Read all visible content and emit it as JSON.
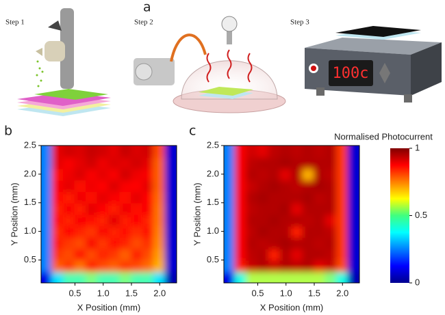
{
  "figure": {
    "panel_a": {
      "label": "a",
      "steps": [
        "Step 1",
        "Step 2",
        "Step 3"
      ],
      "display": "100c"
    }
  },
  "chart_data": [
    {
      "type": "heatmap",
      "panel_label": "b",
      "xlabel": "X Position (mm)",
      "ylabel": "Y Position (mm)",
      "xlim": [
        -0.1,
        2.3
      ],
      "ylim": [
        0.1,
        2.5
      ],
      "xticks": [
        0.5,
        {
          "value": 1,
          "label": "1.0"
        },
        1.5,
        {
          "value": 2,
          "label": "2.0"
        }
      ],
      "yticks": [
        0.5,
        {
          "value": 1,
          "label": "1.0"
        },
        1.5,
        {
          "value": 2,
          "label": "2.0"
        },
        2.5
      ],
      "colormap": "jet",
      "x": [
        0,
        0.2,
        0.4,
        0.6,
        0.8,
        1.0,
        1.2,
        1.4,
        1.6,
        1.8,
        2.0,
        2.2
      ],
      "y": [
        0.2,
        0.4,
        0.6,
        0.8,
        1.0,
        1.2,
        1.4,
        1.6,
        1.8,
        2.0,
        2.2,
        2.4
      ],
      "values": [
        [
          0.1,
          0.35,
          0.45,
          0.45,
          0.5,
          0.45,
          0.45,
          0.5,
          0.45,
          0.45,
          0.35,
          0.05
        ],
        [
          0.25,
          0.78,
          0.82,
          0.76,
          0.84,
          0.8,
          0.78,
          0.82,
          0.8,
          0.77,
          0.7,
          0.08
        ],
        [
          0.25,
          0.82,
          0.8,
          0.86,
          0.8,
          0.84,
          0.82,
          0.78,
          0.85,
          0.8,
          0.72,
          0.08
        ],
        [
          0.25,
          0.85,
          0.82,
          0.8,
          0.88,
          0.82,
          0.86,
          0.84,
          0.8,
          0.83,
          0.74,
          0.08
        ],
        [
          0.25,
          0.83,
          0.87,
          0.84,
          0.82,
          0.88,
          0.84,
          0.86,
          0.83,
          0.86,
          0.75,
          0.08
        ],
        [
          0.25,
          0.86,
          0.84,
          0.88,
          0.86,
          0.84,
          0.9,
          0.85,
          0.87,
          0.84,
          0.76,
          0.08
        ],
        [
          0.25,
          0.84,
          0.88,
          0.85,
          0.9,
          0.87,
          0.85,
          0.89,
          0.86,
          0.88,
          0.76,
          0.08
        ],
        [
          0.25,
          0.87,
          0.85,
          0.89,
          0.86,
          0.9,
          0.88,
          0.86,
          0.9,
          0.87,
          0.77,
          0.08
        ],
        [
          0.25,
          0.88,
          0.9,
          0.86,
          0.89,
          0.87,
          0.91,
          0.88,
          0.87,
          0.9,
          0.78,
          0.08
        ],
        [
          0.25,
          0.86,
          0.89,
          0.91,
          0.88,
          0.9,
          0.88,
          0.92,
          0.89,
          0.88,
          0.78,
          0.08
        ],
        [
          0.25,
          0.9,
          0.88,
          0.9,
          0.92,
          0.89,
          0.91,
          0.9,
          0.92,
          0.9,
          0.78,
          0.08
        ],
        [
          0.25,
          0.9,
          0.92,
          0.91,
          0.93,
          0.92,
          0.9,
          0.93,
          0.91,
          0.92,
          0.8,
          0.08
        ]
      ]
    },
    {
      "type": "heatmap",
      "panel_label": "c",
      "xlabel": "X Position (mm)",
      "ylabel": "Y Position (mm)",
      "xlim": [
        -0.1,
        2.3
      ],
      "ylim": [
        0.1,
        2.5
      ],
      "xticks": [
        0.5,
        {
          "value": 1,
          "label": "1.0"
        },
        1.5,
        {
          "value": 2,
          "label": "2.0"
        }
      ],
      "yticks": [
        0.5,
        {
          "value": 1,
          "label": "1.0"
        },
        1.5,
        {
          "value": 2,
          "label": "2.0"
        },
        2.5
      ],
      "colormap": "jet",
      "colorbar": {
        "title": "Normalised Photocurrent",
        "lim": [
          0,
          1
        ],
        "ticks": [
          0,
          0.5,
          1
        ]
      },
      "x": [
        0,
        0.2,
        0.4,
        0.6,
        0.8,
        1.0,
        1.2,
        1.4,
        1.6,
        1.8,
        2.0,
        2.2
      ],
      "y": [
        0.2,
        0.4,
        0.6,
        0.8,
        1.0,
        1.2,
        1.4,
        1.6,
        1.8,
        2.0,
        2.2,
        2.4
      ],
      "values": [
        [
          0.1,
          0.4,
          0.55,
          0.55,
          0.55,
          0.55,
          0.55,
          0.55,
          0.55,
          0.5,
          0.4,
          0.05
        ],
        [
          0.25,
          0.85,
          0.93,
          0.95,
          0.93,
          0.95,
          0.94,
          0.95,
          0.9,
          0.93,
          0.8,
          0.08
        ],
        [
          0.25,
          0.88,
          0.94,
          0.95,
          0.85,
          0.95,
          0.9,
          0.95,
          0.95,
          0.94,
          0.82,
          0.08
        ],
        [
          0.25,
          0.88,
          0.95,
          0.94,
          0.95,
          0.96,
          0.95,
          0.95,
          0.94,
          0.95,
          0.82,
          0.08
        ],
        [
          0.25,
          0.88,
          0.94,
          0.96,
          0.95,
          0.95,
          0.85,
          0.95,
          0.95,
          0.94,
          0.82,
          0.08
        ],
        [
          0.25,
          0.88,
          0.95,
          0.95,
          0.96,
          0.95,
          0.95,
          0.94,
          0.95,
          0.9,
          0.82,
          0.08
        ],
        [
          0.25,
          0.88,
          0.94,
          0.95,
          0.95,
          0.96,
          0.9,
          0.95,
          0.95,
          0.95,
          0.82,
          0.08
        ],
        [
          0.25,
          0.88,
          0.95,
          0.96,
          0.95,
          0.95,
          0.95,
          0.96,
          0.94,
          0.95,
          0.82,
          0.08
        ],
        [
          0.25,
          0.88,
          0.93,
          0.95,
          0.96,
          0.95,
          0.94,
          0.95,
          0.96,
          0.95,
          0.82,
          0.08
        ],
        [
          0.25,
          0.88,
          0.95,
          0.94,
          0.95,
          0.9,
          0.95,
          0.7,
          0.95,
          0.94,
          0.82,
          0.08
        ],
        [
          0.25,
          0.88,
          0.94,
          0.95,
          0.95,
          0.96,
          0.95,
          0.95,
          0.95,
          0.95,
          0.82,
          0.08
        ],
        [
          0.25,
          0.88,
          0.92,
          0.9,
          0.94,
          0.95,
          0.94,
          0.95,
          0.94,
          0.95,
          0.82,
          0.08
        ]
      ]
    }
  ]
}
